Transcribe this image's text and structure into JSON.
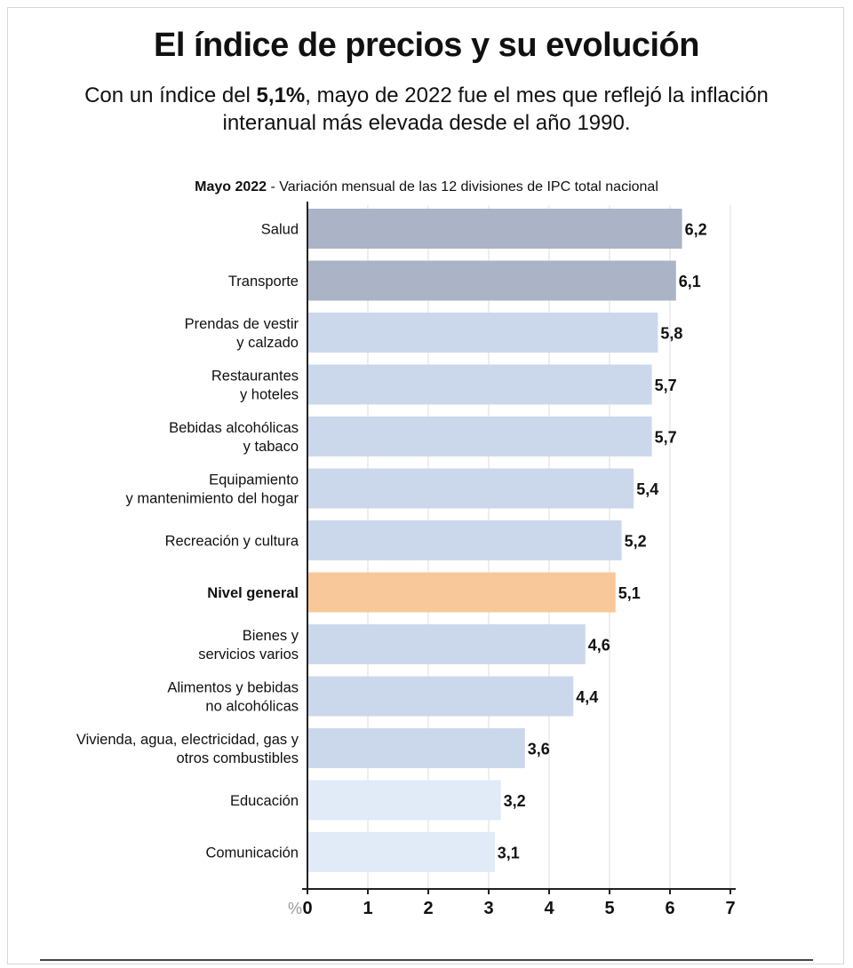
{
  "header": {
    "title": "El índice de precios y su evolución",
    "subtitle_pre": "Con un índice del ",
    "subtitle_bold": "5,1%",
    "subtitle_post": ", mayo de 2022 fue el mes que reflejó la inflación interanual más elevada desde el año 1990."
  },
  "chart_data": {
    "type": "bar",
    "orientation": "horizontal",
    "title_bold": "Mayo 2022",
    "title_rest": " - Variación mensual de las 12 divisiones de IPC total nacional",
    "unit": "%",
    "xlim": [
      0,
      7
    ],
    "ticks": [
      "0",
      "1",
      "2",
      "3",
      "4",
      "5",
      "6",
      "7"
    ],
    "categories": [
      [
        "Salud"
      ],
      [
        "Transporte"
      ],
      [
        "Prendas de vestir",
        "y calzado"
      ],
      [
        "Restaurantes",
        "y hoteles"
      ],
      [
        "Bebidas alcohólicas",
        "y tabaco"
      ],
      [
        "Equipamiento",
        "y mantenimiento del hogar"
      ],
      [
        "Recreación y cultura"
      ],
      [
        "Nivel general"
      ],
      [
        "Bienes y",
        "servicios varios"
      ],
      [
        "Alimentos y bebidas",
        "no alcohólicas"
      ],
      [
        "Vivienda, agua, electricidad, gas y",
        "otros combustibles"
      ],
      [
        "Educación"
      ],
      [
        "Comunicación"
      ]
    ],
    "values": [
      6.2,
      6.1,
      5.8,
      5.7,
      5.7,
      5.4,
      5.2,
      5.1,
      4.6,
      4.4,
      3.6,
      3.2,
      3.1
    ],
    "value_labels": [
      "6,2",
      "6,1",
      "5,8",
      "5,7",
      "5,7",
      "5,4",
      "5,2",
      "5,1",
      "4,6",
      "4,4",
      "3,6",
      "3,2",
      "3,1"
    ],
    "highlight": "Nivel general",
    "colors": {
      "top": "#aab4c6",
      "mid": "#cbd8ec",
      "low": "#e1eaf7",
      "highlight": "#f9c89a",
      "grid": "#dcdcdc",
      "axis": "#222222"
    }
  }
}
